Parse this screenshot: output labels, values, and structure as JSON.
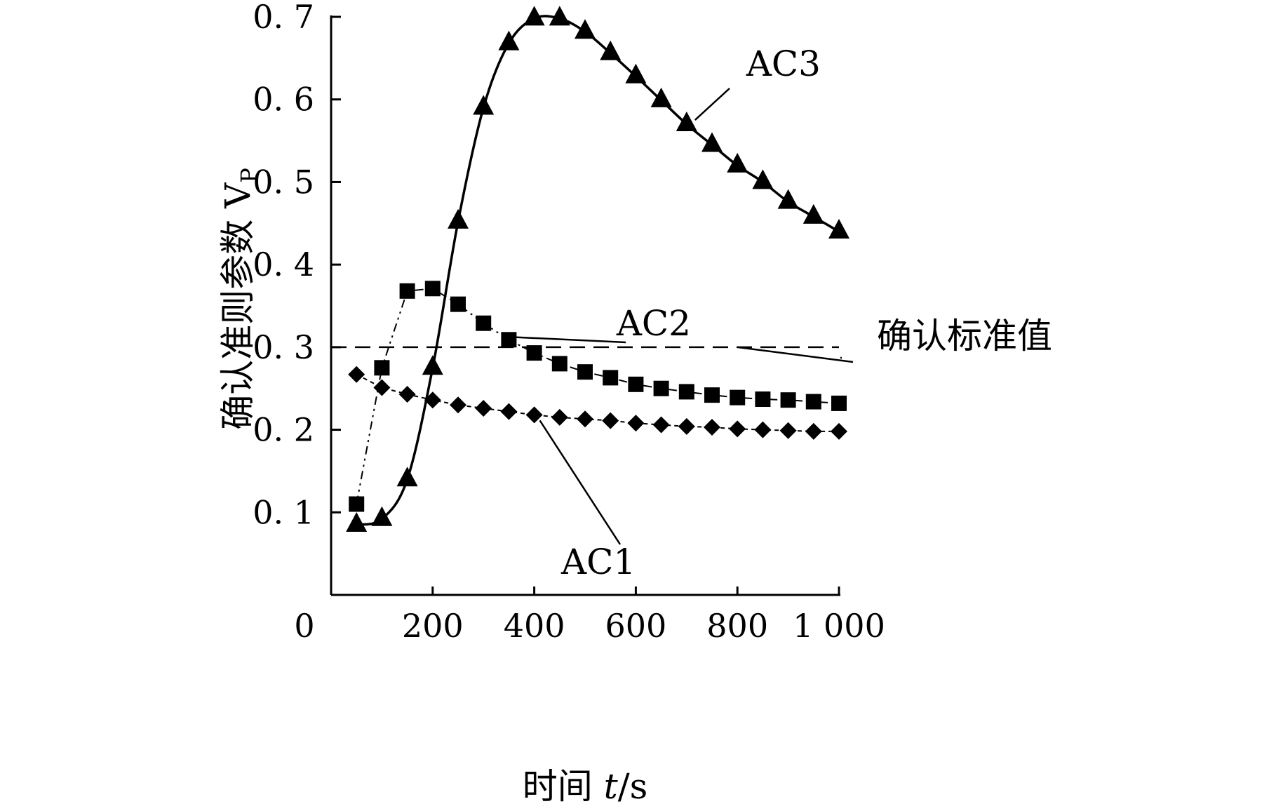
{
  "chart_data": {
    "type": "line",
    "xlabel_text": "时间 ",
    "xlabel_var": "t",
    "xlabel_unit": "/s",
    "ylabel_text": "确认准则参数 V",
    "ylabel_sub": "P",
    "xlim": [
      0,
      1000
    ],
    "ylim": [
      0,
      0.7
    ],
    "x_ticks": [
      0,
      200,
      400,
      600,
      800,
      1000
    ],
    "x_tick_labels": [
      "0",
      "200",
      "400",
      "600",
      "800",
      "1 000"
    ],
    "y_ticks": [
      0.1,
      0.2,
      0.3,
      0.4,
      0.5,
      0.6,
      0.7
    ],
    "y_tick_labels": [
      "0. 1",
      "0. 2",
      "0. 3",
      "0. 4",
      "0. 5",
      "0. 6",
      "0. 7"
    ],
    "reference_line": {
      "name": "确认标准值",
      "y": 0.3
    },
    "series": [
      {
        "name": "AC1",
        "marker": "diamond",
        "x": [
          50,
          100,
          150,
          200,
          250,
          300,
          350,
          400,
          450,
          500,
          550,
          600,
          650,
          700,
          750,
          800,
          850,
          900,
          950,
          1000
        ],
        "values": [
          0.267,
          0.251,
          0.243,
          0.236,
          0.23,
          0.226,
          0.222,
          0.218,
          0.215,
          0.213,
          0.211,
          0.208,
          0.206,
          0.204,
          0.203,
          0.201,
          0.2,
          0.199,
          0.198,
          0.198
        ]
      },
      {
        "name": "AC2",
        "marker": "square",
        "x": [
          50,
          100,
          150,
          200,
          250,
          300,
          350,
          400,
          450,
          500,
          550,
          600,
          650,
          700,
          750,
          800,
          850,
          900,
          950,
          1000
        ],
        "values": [
          0.11,
          0.275,
          0.368,
          0.371,
          0.352,
          0.329,
          0.309,
          0.293,
          0.28,
          0.27,
          0.263,
          0.255,
          0.25,
          0.246,
          0.242,
          0.239,
          0.237,
          0.236,
          0.234,
          0.232
        ]
      },
      {
        "name": "AC3",
        "marker": "triangle",
        "x": [
          50,
          100,
          150,
          200,
          250,
          300,
          350,
          400,
          450,
          500,
          550,
          600,
          650,
          700,
          750,
          800,
          850,
          900,
          950,
          1000
        ],
        "values": [
          0.085,
          0.092,
          0.14,
          0.275,
          0.452,
          0.59,
          0.668,
          0.698,
          0.698,
          0.682,
          0.656,
          0.628,
          0.599,
          0.57,
          0.545,
          0.52,
          0.5,
          0.476,
          0.458,
          0.44
        ]
      }
    ]
  }
}
